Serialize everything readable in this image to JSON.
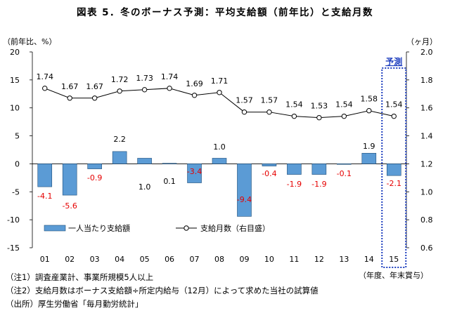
{
  "title": "図表 5．冬のボーナス予測：平均支給額（前年比）と支給月数",
  "chart_data": {
    "type": "bar",
    "categories": [
      "01",
      "02",
      "03",
      "04",
      "05",
      "06",
      "07",
      "08",
      "09",
      "10",
      "11",
      "12",
      "13",
      "14",
      "15"
    ],
    "x_axis_caption": "（年度、年末賞与）",
    "left_axis": {
      "label": "（前年比、%）",
      "ylim": [
        -15,
        20
      ],
      "ticks": [
        20,
        15,
        10,
        5,
        0,
        -5,
        -10,
        -15
      ]
    },
    "right_axis": {
      "label": "（ヶ月）",
      "ylim": [
        0.6,
        2.0
      ],
      "ticks": [
        "2.0",
        "1.8",
        "1.6",
        "1.4",
        "1.2",
        "1.0",
        "0.8",
        "0.6"
      ]
    },
    "series": [
      {
        "name": "一人当たり支給額",
        "type": "bar",
        "axis": "left",
        "color": "#5b9bd5",
        "values": [
          -4.1,
          -5.6,
          -0.9,
          2.2,
          1.0,
          0.1,
          -3.4,
          1.0,
          -9.4,
          -0.4,
          -1.9,
          -1.9,
          -0.1,
          1.9,
          -2.1
        ],
        "labels": [
          "-4.1",
          "-5.6",
          "-0.9",
          "2.2",
          "1.0",
          "0.1",
          "-3.4",
          "1.0",
          "-9.4",
          "-0.4",
          "-1.9",
          "-1.9",
          "-0.1",
          "1.9",
          "-2.1"
        ]
      },
      {
        "name": "支給月数（右目盛）",
        "type": "line",
        "axis": "right",
        "color": "#000000",
        "values": [
          1.74,
          1.67,
          1.67,
          1.72,
          1.73,
          1.74,
          1.69,
          1.71,
          1.57,
          1.57,
          1.54,
          1.53,
          1.54,
          1.58,
          1.54
        ],
        "labels": [
          "1.74",
          "1.67",
          "1.67",
          "1.72",
          "1.73",
          "1.74",
          "1.69",
          "1.71",
          "1.57",
          "1.57",
          "1.54",
          "1.53",
          "1.54",
          "1.58",
          "1.54"
        ]
      }
    ],
    "forecast": {
      "label": "予測",
      "category": "15",
      "box_color": "#1f3fbf"
    }
  },
  "notes": [
    "（注1）調査産業計、事業所規模5人以上",
    "（注2）支給月数はボーナス支給額÷所定内給与（12月）によって求めた当社の試算値",
    "（出所）厚生労働省「毎月勤労統計」"
  ]
}
